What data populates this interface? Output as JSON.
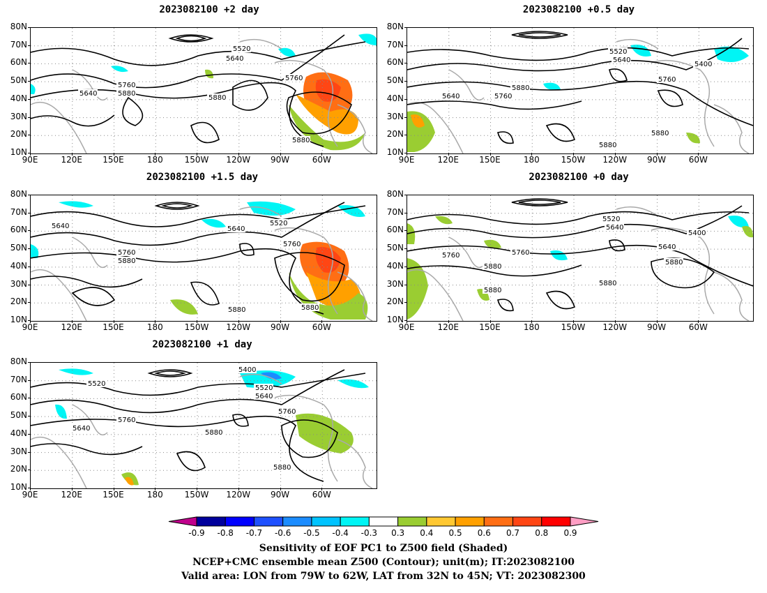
{
  "panels": [
    {
      "id": "p2",
      "title": "2023082100 +2 day",
      "contour_labels": [
        "5520",
        "5640",
        "5760",
        "5640",
        "5760",
        "5880",
        "5880",
        "5880"
      ]
    },
    {
      "id": "p05",
      "title": "2023082100 +0.5 day",
      "contour_labels": [
        "5520",
        "5640",
        "5400",
        "5760",
        "5640",
        "5760",
        "5880",
        "5880",
        "5880"
      ]
    },
    {
      "id": "p15",
      "title": "2023082100 +1.5 day",
      "contour_labels": [
        "5640",
        "5640",
        "5520",
        "5760",
        "5760",
        "5880",
        "5880",
        "5880"
      ]
    },
    {
      "id": "p0",
      "title": "2023082100 +0 day",
      "contour_labels": [
        "5520",
        "5640",
        "5400",
        "5640",
        "5760",
        "5760",
        "5880",
        "5880",
        "5880",
        "5880"
      ]
    },
    {
      "id": "p1",
      "title": "2023082100 +1 day",
      "contour_labels": [
        "5400",
        "5520",
        "5520",
        "5640",
        "5760",
        "5640",
        "5760",
        "5880",
        "5880"
      ]
    }
  ],
  "lat_ticks": [
    "80N",
    "70N",
    "60N",
    "50N",
    "40N",
    "30N",
    "20N",
    "10N"
  ],
  "lon_ticks": [
    "90E",
    "120E",
    "150E",
    "180",
    "150W",
    "120W",
    "90W",
    "60W"
  ],
  "colorbar": {
    "labels": [
      "-0.9",
      "-0.8",
      "-0.7",
      "-0.6",
      "-0.5",
      "-0.4",
      "-0.3",
      "0.3",
      "0.4",
      "0.5",
      "0.6",
      "0.7",
      "0.8",
      "0.9"
    ],
    "colors": [
      "#c0008c",
      "#00009c",
      "#0000ff",
      "#1e50ff",
      "#1c8cff",
      "#00c3ff",
      "#00f5f5",
      "#ffffff",
      "#9acd32",
      "#ffc832",
      "#ffa000",
      "#ff6e14",
      "#ff4614",
      "#ff0000",
      "#ff9ec4"
    ]
  },
  "captions": [
    "Sensitivity of EOF PC1 to Z500 field (Shaded)",
    "NCEP+CMC ensemble mean Z500 (Contour); unit(m); IT:2023082100",
    "Valid area: LON from 79W to 62W, LAT from 32N to 45N; VT: 2023082300"
  ]
}
